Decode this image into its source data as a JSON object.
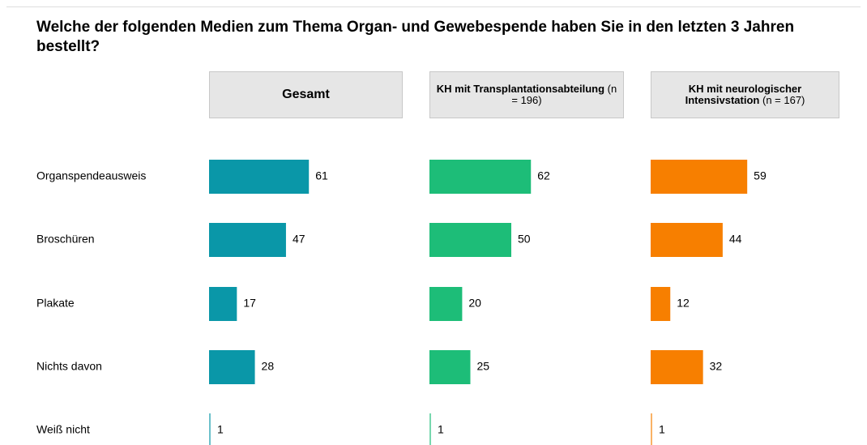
{
  "chart_data": {
    "type": "bar",
    "title": "Welche der folgenden Medien zum Thema Organ- und Gewebespende haben Sie in den letzten 3 Jahren bestellt?",
    "categories": [
      "Organspendeausweis",
      "Broschüren",
      "Plakate",
      "Nichts davon",
      "Weiß nicht"
    ],
    "series": [
      {
        "name": "Gesamt",
        "color": "#0a97a8",
        "values": [
          61,
          47,
          17,
          28,
          1
        ]
      },
      {
        "name": "KH mit Transplantationsabteilung",
        "sample": "(n = 196)",
        "color": "#1dbd78",
        "values": [
          62,
          50,
          20,
          25,
          1
        ]
      },
      {
        "name": "KH mit neurologischer Intensivstation",
        "sample": "(n = 167)",
        "color": "#f77f00",
        "values": [
          59,
          44,
          12,
          32,
          1
        ]
      }
    ]
  }
}
